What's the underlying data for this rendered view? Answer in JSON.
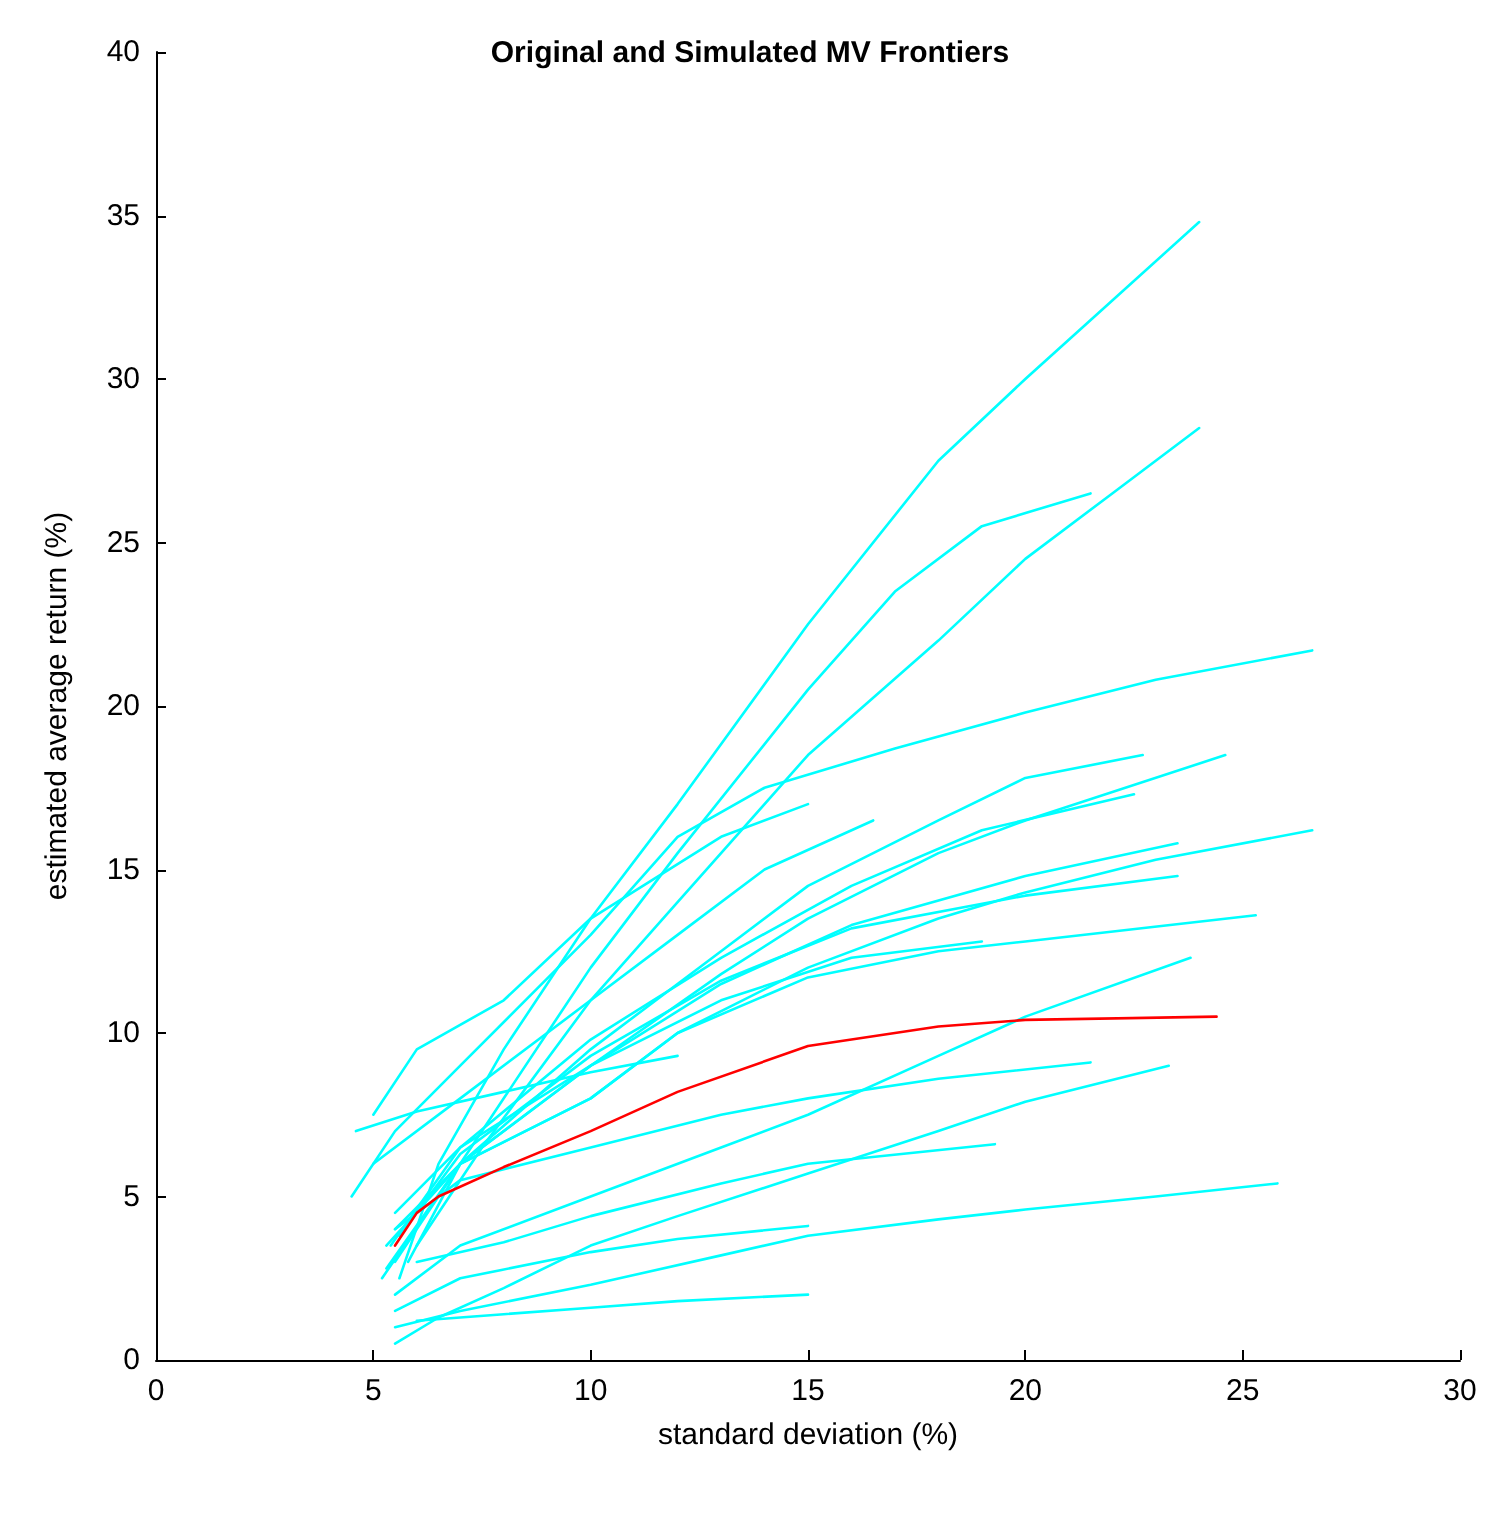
{
  "chart_data": {
    "type": "line",
    "title": "Original and Simulated MV Frontiers",
    "xlabel": "standard deviation (%)",
    "ylabel": "estimated average return (%)",
    "xlim": [
      0,
      30
    ],
    "xticks": [
      0,
      5,
      10,
      15,
      20,
      25,
      30
    ],
    "ylim": [
      0,
      40
    ],
    "yticks": [
      0,
      5,
      10,
      15,
      20,
      25,
      30,
      35,
      40
    ],
    "grid": false,
    "marker": "none",
    "line_style": "solid",
    "series": [
      {
        "color": "#00ffff",
        "x": [
          5.6,
          6.5,
          8,
          10,
          12,
          15,
          18,
          20,
          24
        ],
        "values": [
          2.5,
          6,
          9.5,
          13.5,
          17,
          22.5,
          27.5,
          30,
          34.8
        ]
      },
      {
        "color": "#00ffff",
        "x": [
          5.8,
          7,
          10,
          12,
          15,
          17,
          19,
          21.5
        ],
        "values": [
          3,
          6,
          12,
          15.5,
          20.5,
          23.5,
          25.5,
          26.5
        ]
      },
      {
        "color": "#00ffff",
        "x": [
          6,
          7.5,
          10,
          12,
          15,
          18,
          20,
          22,
          24
        ],
        "values": [
          3.5,
          6.5,
          11,
          14,
          18.5,
          22,
          24.5,
          26.5,
          28.5
        ]
      },
      {
        "color": "#00ffff",
        "x": [
          4.5,
          5.5,
          7,
          10,
          12,
          14,
          17,
          20,
          23,
          26.6
        ],
        "values": [
          5,
          7,
          9,
          13,
          16,
          17.5,
          18.7,
          19.8,
          20.8,
          21.7
        ]
      },
      {
        "color": "#00ffff",
        "x": [
          5,
          6,
          8,
          10,
          13,
          15
        ],
        "values": [
          7.5,
          9.5,
          11,
          13.5,
          16,
          17
        ]
      },
      {
        "color": "#00ffff",
        "x": [
          5.2,
          7,
          10,
          13,
          15,
          18,
          20,
          22.7
        ],
        "values": [
          2.5,
          6,
          9.5,
          12.5,
          14.5,
          16.5,
          17.8,
          18.5
        ]
      },
      {
        "color": "#00ffff",
        "x": [
          5.5,
          7,
          10,
          13,
          15,
          18,
          20,
          24.6
        ],
        "values": [
          3,
          6,
          9,
          11.8,
          13.5,
          15.5,
          16.5,
          18.5
        ]
      },
      {
        "color": "#00ffff",
        "x": [
          5.4,
          7,
          10,
          13,
          16,
          19,
          22.5
        ],
        "values": [
          3.5,
          6.5,
          9.8,
          12.3,
          14.5,
          16.2,
          17.3
        ]
      },
      {
        "color": "#00ffff",
        "x": [
          5,
          7,
          10,
          12,
          14,
          16.5
        ],
        "values": [
          6,
          8,
          11,
          13,
          15,
          16.5
        ]
      },
      {
        "color": "#00ffff",
        "x": [
          5.5,
          7,
          10,
          12,
          15,
          18,
          20,
          23,
          26.6
        ],
        "values": [
          4,
          6,
          8,
          10,
          12,
          13.5,
          14.3,
          15.3,
          16.2
        ]
      },
      {
        "color": "#00ffff",
        "x": [
          5.3,
          7,
          10,
          13,
          16,
          20,
          23.5
        ],
        "values": [
          2.8,
          6,
          9,
          11.5,
          13.3,
          14.8,
          15.8
        ]
      },
      {
        "color": "#00ffff",
        "x": [
          5.6,
          7,
          10,
          13,
          16,
          20,
          23.5
        ],
        "values": [
          3.8,
          6.3,
          9.3,
          11.6,
          13.2,
          14.2,
          14.8
        ]
      },
      {
        "color": "#00ffff",
        "x": [
          5.3,
          7,
          10,
          12,
          15,
          18,
          20,
          25.3
        ],
        "values": [
          3.5,
          6,
          8,
          10,
          11.7,
          12.5,
          12.8,
          13.6
        ]
      },
      {
        "color": "#00ffff",
        "x": [
          5.5,
          7,
          10,
          13,
          16,
          19
        ],
        "values": [
          4.5,
          6.5,
          9,
          11,
          12.3,
          12.8
        ]
      },
      {
        "color": "#00ffff",
        "x": [
          5.5,
          7,
          10,
          13,
          15,
          18,
          20,
          23.8
        ],
        "values": [
          2,
          3.5,
          5,
          6.5,
          7.5,
          9.3,
          10.5,
          12.3
        ]
      },
      {
        "color": "#00ffff",
        "x": [
          5.5,
          7,
          10,
          13,
          15,
          18,
          21.5
        ],
        "values": [
          4,
          5.5,
          6.5,
          7.5,
          8,
          8.6,
          9.1
        ]
      },
      {
        "color": "#00ffff",
        "x": [
          5.5,
          6.5,
          8,
          10,
          12,
          15,
          18,
          20,
          23.3
        ],
        "values": [
          0.5,
          1.3,
          2.2,
          3.5,
          4.4,
          5.7,
          7,
          7.9,
          9
        ]
      },
      {
        "color": "#00ffff",
        "x": [
          6,
          8,
          10,
          13,
          15,
          19.3
        ],
        "values": [
          3,
          3.6,
          4.4,
          5.4,
          6,
          6.6
        ]
      },
      {
        "color": "#00ffff",
        "x": [
          5.5,
          7,
          10,
          13,
          15,
          18,
          20,
          23,
          25.8
        ],
        "values": [
          1,
          1.5,
          2.3,
          3.2,
          3.8,
          4.3,
          4.6,
          5,
          5.4
        ]
      },
      {
        "color": "#00ffff",
        "x": [
          6,
          8,
          10,
          12,
          15
        ],
        "values": [
          1.2,
          1.4,
          1.6,
          1.8,
          2
        ]
      },
      {
        "color": "#00ffff",
        "x": [
          5.5,
          7,
          10,
          12,
          15
        ],
        "values": [
          1.5,
          2.5,
          3.3,
          3.7,
          4.1
        ]
      },
      {
        "color": "#00ffff",
        "x": [
          4.6,
          6,
          8,
          10,
          12
        ],
        "values": [
          7,
          7.6,
          8.2,
          8.8,
          9.3
        ]
      },
      {
        "color": "#ff0000",
        "x": [
          5.5,
          6,
          6.5,
          8,
          10,
          12,
          15,
          18,
          20,
          24.4
        ],
        "values": [
          3.5,
          4.5,
          5,
          5.9,
          7,
          8.2,
          9.6,
          10.2,
          10.4,
          10.5
        ]
      }
    ]
  }
}
